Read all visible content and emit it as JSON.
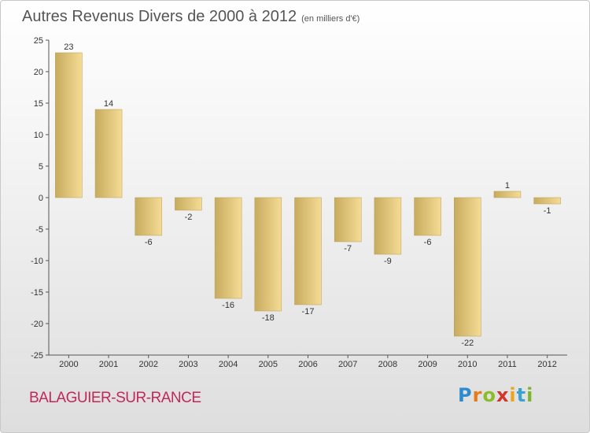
{
  "header": {
    "title": "Autres Revenus Divers de 2000 à 2012",
    "unit": "(en milliers d'€)"
  },
  "footer": {
    "commune": "BALAGUIER-SUR-RANCE",
    "logo": {
      "letters": [
        "P",
        "r",
        "o",
        "x",
        "i",
        "t",
        "i"
      ],
      "colors": [
        "#2e8bd0",
        "#e77b1a",
        "#8bbd2a",
        "#d2332a",
        "#e9a71d",
        "#3aa2cf",
        "#7ab52d"
      ]
    }
  },
  "chart_data": {
    "type": "bar",
    "categories": [
      "2000",
      "2001",
      "2002",
      "2003",
      "2004",
      "2005",
      "2006",
      "2007",
      "2008",
      "2009",
      "2010",
      "2011",
      "2012"
    ],
    "values": [
      23,
      14,
      -6,
      -2,
      -16,
      -18,
      -17,
      -7,
      -9,
      -6,
      -22,
      1,
      -1
    ],
    "ylim": [
      -25,
      25
    ],
    "yticks": [
      25,
      20,
      15,
      10,
      5,
      0,
      -5,
      -10,
      -15,
      -20,
      -25
    ],
    "xlabel": "",
    "ylabel": "",
    "grid": false,
    "data_labels": true,
    "colors": {
      "bar_light": "#f5dc95",
      "bar_dark": "#c7ab5e",
      "axis": "#555555",
      "text": "#333333"
    }
  }
}
